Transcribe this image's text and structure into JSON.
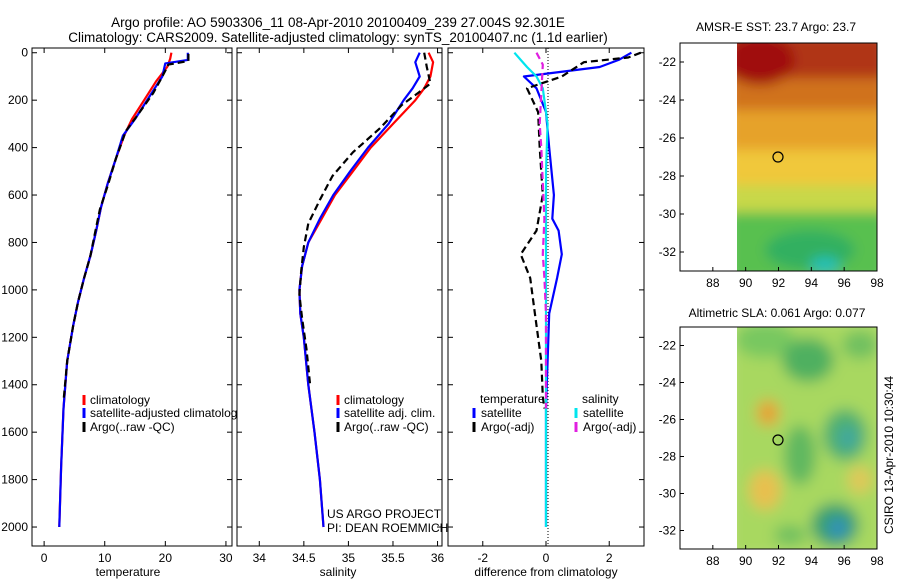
{
  "title": {
    "line1": "Argo profile: AO 5903306_11 08-Apr-2010 20100409_239 27.004S 92.301E",
    "line2": "Climatology: CARS2009. Satellite-adjusted climatology: synTS_20100407.nc (1.1d earlier)"
  },
  "colors": {
    "climatology": "#ff0000",
    "satellite": "#0000ff",
    "argo": "#000000",
    "cyan": "#00e5ee",
    "magenta": "#e020e0"
  },
  "chart_data": [
    {
      "type": "line",
      "name": "temperature-panel",
      "xlabel": "temperature",
      "xlim": [
        -2,
        31
      ],
      "xticks": [
        0,
        10,
        20,
        30
      ],
      "ylim": [
        -20,
        2080
      ],
      "yticks": [
        0,
        200,
        400,
        600,
        800,
        1000,
        1200,
        1400,
        1600,
        1800,
        2000
      ],
      "yreversed": true,
      "legend": [
        "climatology",
        "satellite-adjusted climatolog",
        "Argo(..raw -QC)"
      ],
      "series": [
        {
          "name": "climatology",
          "color": "#ff0000",
          "dash": false,
          "x": [
            21.0,
            20.8,
            20.3,
            18.5,
            16.5,
            14.5,
            13.2,
            11.8,
            10.5,
            9.4,
            8.6,
            7.7,
            6.6,
            5.6,
            4.8,
            3.8,
            3.2,
            2.8,
            2.5
          ],
          "y": [
            0,
            25,
            60,
            120,
            200,
            280,
            350,
            450,
            550,
            650,
            750,
            850,
            950,
            1050,
            1150,
            1300,
            1500,
            1750,
            2000
          ]
        },
        {
          "name": "satellite-adjusted",
          "color": "#0000ff",
          "dash": false,
          "x": [
            23.7,
            23.7,
            20.0,
            19.5,
            17.5,
            15.0,
            13.0,
            11.8,
            10.5,
            9.4,
            8.6,
            7.7,
            6.6,
            5.6,
            4.8,
            3.8,
            3.2,
            2.8,
            2.5
          ],
          "y": [
            0,
            30,
            45,
            100,
            180,
            280,
            350,
            450,
            550,
            650,
            750,
            850,
            950,
            1050,
            1150,
            1300,
            1500,
            1750,
            2000
          ]
        },
        {
          "name": "argo",
          "color": "#000000",
          "dash": true,
          "x": [
            23.8,
            23.8,
            20.5,
            19.5,
            18.0,
            15.5,
            13.5,
            11.8,
            10.5,
            9.2,
            8.4,
            7.6,
            6.6,
            5.6,
            4.8,
            3.8,
            3.2
          ],
          "y": [
            5,
            35,
            50,
            100,
            170,
            260,
            330,
            450,
            560,
            660,
            760,
            860,
            950,
            1050,
            1150,
            1300,
            1470
          ]
        }
      ]
    },
    {
      "type": "line",
      "name": "salinity-panel",
      "xlabel": "salinity",
      "xlim": [
        33.75,
        36.05
      ],
      "xticks": [
        34,
        34.5,
        35,
        35.5,
        36
      ],
      "ylim": [
        -20,
        2080
      ],
      "yreversed": true,
      "legend": [
        "climatology",
        "satellite adj. clim.",
        "Argo(..raw -QC)"
      ],
      "annotation": [
        "US ARGO PROJECT",
        "PI: DEAN ROEMMICH"
      ],
      "series": [
        {
          "name": "climatology",
          "color": "#ff0000",
          "dash": false,
          "x": [
            35.9,
            35.95,
            35.92,
            35.85,
            35.75,
            35.5,
            35.25,
            35.05,
            34.85,
            34.7,
            34.55,
            34.48,
            34.45,
            34.46,
            34.5,
            34.55,
            34.62,
            34.68,
            34.72
          ],
          "y": [
            0,
            40,
            100,
            150,
            200,
            300,
            400,
            500,
            600,
            700,
            800,
            900,
            1000,
            1100,
            1200,
            1400,
            1600,
            1800,
            2000
          ]
        },
        {
          "name": "satellite-adjusted",
          "color": "#0000ff",
          "dash": false,
          "x": [
            35.8,
            35.75,
            35.8,
            35.72,
            35.62,
            35.45,
            35.22,
            35.02,
            34.83,
            34.68,
            34.55,
            34.48,
            34.45,
            34.46,
            34.5,
            34.55,
            34.62,
            34.68,
            34.72
          ],
          "y": [
            0,
            40,
            100,
            150,
            200,
            300,
            400,
            500,
            600,
            700,
            800,
            900,
            1000,
            1100,
            1200,
            1400,
            1600,
            1800,
            2000
          ]
        },
        {
          "name": "argo",
          "color": "#000000",
          "dash": true,
          "x": [
            35.85,
            35.88,
            35.92,
            35.78,
            35.6,
            35.35,
            35.05,
            34.82,
            34.68,
            34.55,
            34.5,
            34.47,
            34.45,
            34.48,
            34.53,
            34.57
          ],
          "y": [
            0,
            60,
            130,
            170,
            220,
            320,
            420,
            520,
            620,
            720,
            820,
            920,
            1020,
            1120,
            1250,
            1400
          ]
        }
      ]
    },
    {
      "type": "line",
      "name": "difference-panel",
      "xlabel": "difference from climatology",
      "xlim": [
        -3.1,
        3.1
      ],
      "xticks": [
        -2,
        0,
        2
      ],
      "ylim": [
        -20,
        2080
      ],
      "yreversed": true,
      "legend_headers": [
        "temperature",
        "salinity"
      ],
      "legend": [
        "satellite",
        "Argo(-adj)",
        "satellite",
        "Argo(-adj)"
      ],
      "series": [
        {
          "name": "temperature-satellite",
          "color": "#0000ff",
          "dash": false,
          "x": [
            2.7,
            2.5,
            2.3,
            1.7,
            -0.7,
            -0.3,
            0.0,
            0.1,
            0.25,
            0.2,
            0.4,
            0.5,
            0.35,
            0.1,
            0.05,
            0.0,
            0.0,
            0.0,
            0.0
          ],
          "y": [
            0,
            15,
            30,
            60,
            100,
            150,
            250,
            400,
            600,
            700,
            750,
            850,
            950,
            1100,
            1300,
            1500,
            1700,
            1900,
            2000
          ]
        },
        {
          "name": "temperature-argo",
          "color": "#000000",
          "dash": true,
          "x": [
            3.0,
            2.6,
            1.2,
            0.5,
            -0.6,
            -0.25,
            -0.2,
            -0.1,
            -0.3,
            -0.8,
            -0.5,
            -0.35,
            -0.15,
            -0.1,
            -0.05
          ],
          "y": [
            0,
            20,
            40,
            100,
            150,
            250,
            400,
            600,
            750,
            850,
            950,
            1100,
            1300,
            1450,
            1500
          ]
        },
        {
          "name": "salinity-satellite",
          "color": "#00e5ee",
          "dash": false,
          "x": [
            -1.0,
            -0.8,
            -0.6,
            -0.3,
            -0.1,
            0.05,
            0.0,
            0.0,
            0.0,
            0.0,
            0.0,
            0.0,
            0.0,
            0.0,
            0.0,
            0.0
          ],
          "y": [
            0,
            30,
            60,
            100,
            150,
            300,
            500,
            700,
            900,
            1100,
            1300,
            1500,
            1700,
            1800,
            1900,
            2000
          ]
        },
        {
          "name": "salinity-argo",
          "color": "#e020e0",
          "dash": true,
          "x": [
            -0.3,
            -0.1,
            -0.2,
            -0.15,
            -0.1,
            -0.05,
            -0.1,
            -0.05,
            0.0,
            0.0
          ],
          "y": [
            0,
            50,
            300,
            400,
            550,
            700,
            850,
            950,
            1100,
            1500
          ]
        }
      ]
    },
    {
      "type": "heatmap",
      "name": "sst-map",
      "title": "AMSR-E SST: 23.7 Argo: 23.7",
      "xlim": [
        86,
        98
      ],
      "ylim": [
        -33,
        -21
      ],
      "xticks": [
        88,
        90,
        92,
        94,
        96,
        98
      ],
      "yticks": [
        -22,
        -24,
        -26,
        -28,
        -30,
        -32
      ],
      "marker": {
        "lon": 92.3,
        "lat": -27.0
      }
    },
    {
      "type": "heatmap",
      "name": "sla-map",
      "title": "Altimetric SLA: 0.061 Argo: 0.077",
      "xlim": [
        86,
        98
      ],
      "ylim": [
        -33,
        -21
      ],
      "xticks": [
        88,
        90,
        92,
        94,
        96,
        98
      ],
      "yticks": [
        -22,
        -24,
        -26,
        -28,
        -30,
        -32
      ],
      "marker": {
        "lon": 92.3,
        "lat": -27.0
      }
    }
  ],
  "credit": "CSIRO 13-Apr-2010 10:30:44"
}
